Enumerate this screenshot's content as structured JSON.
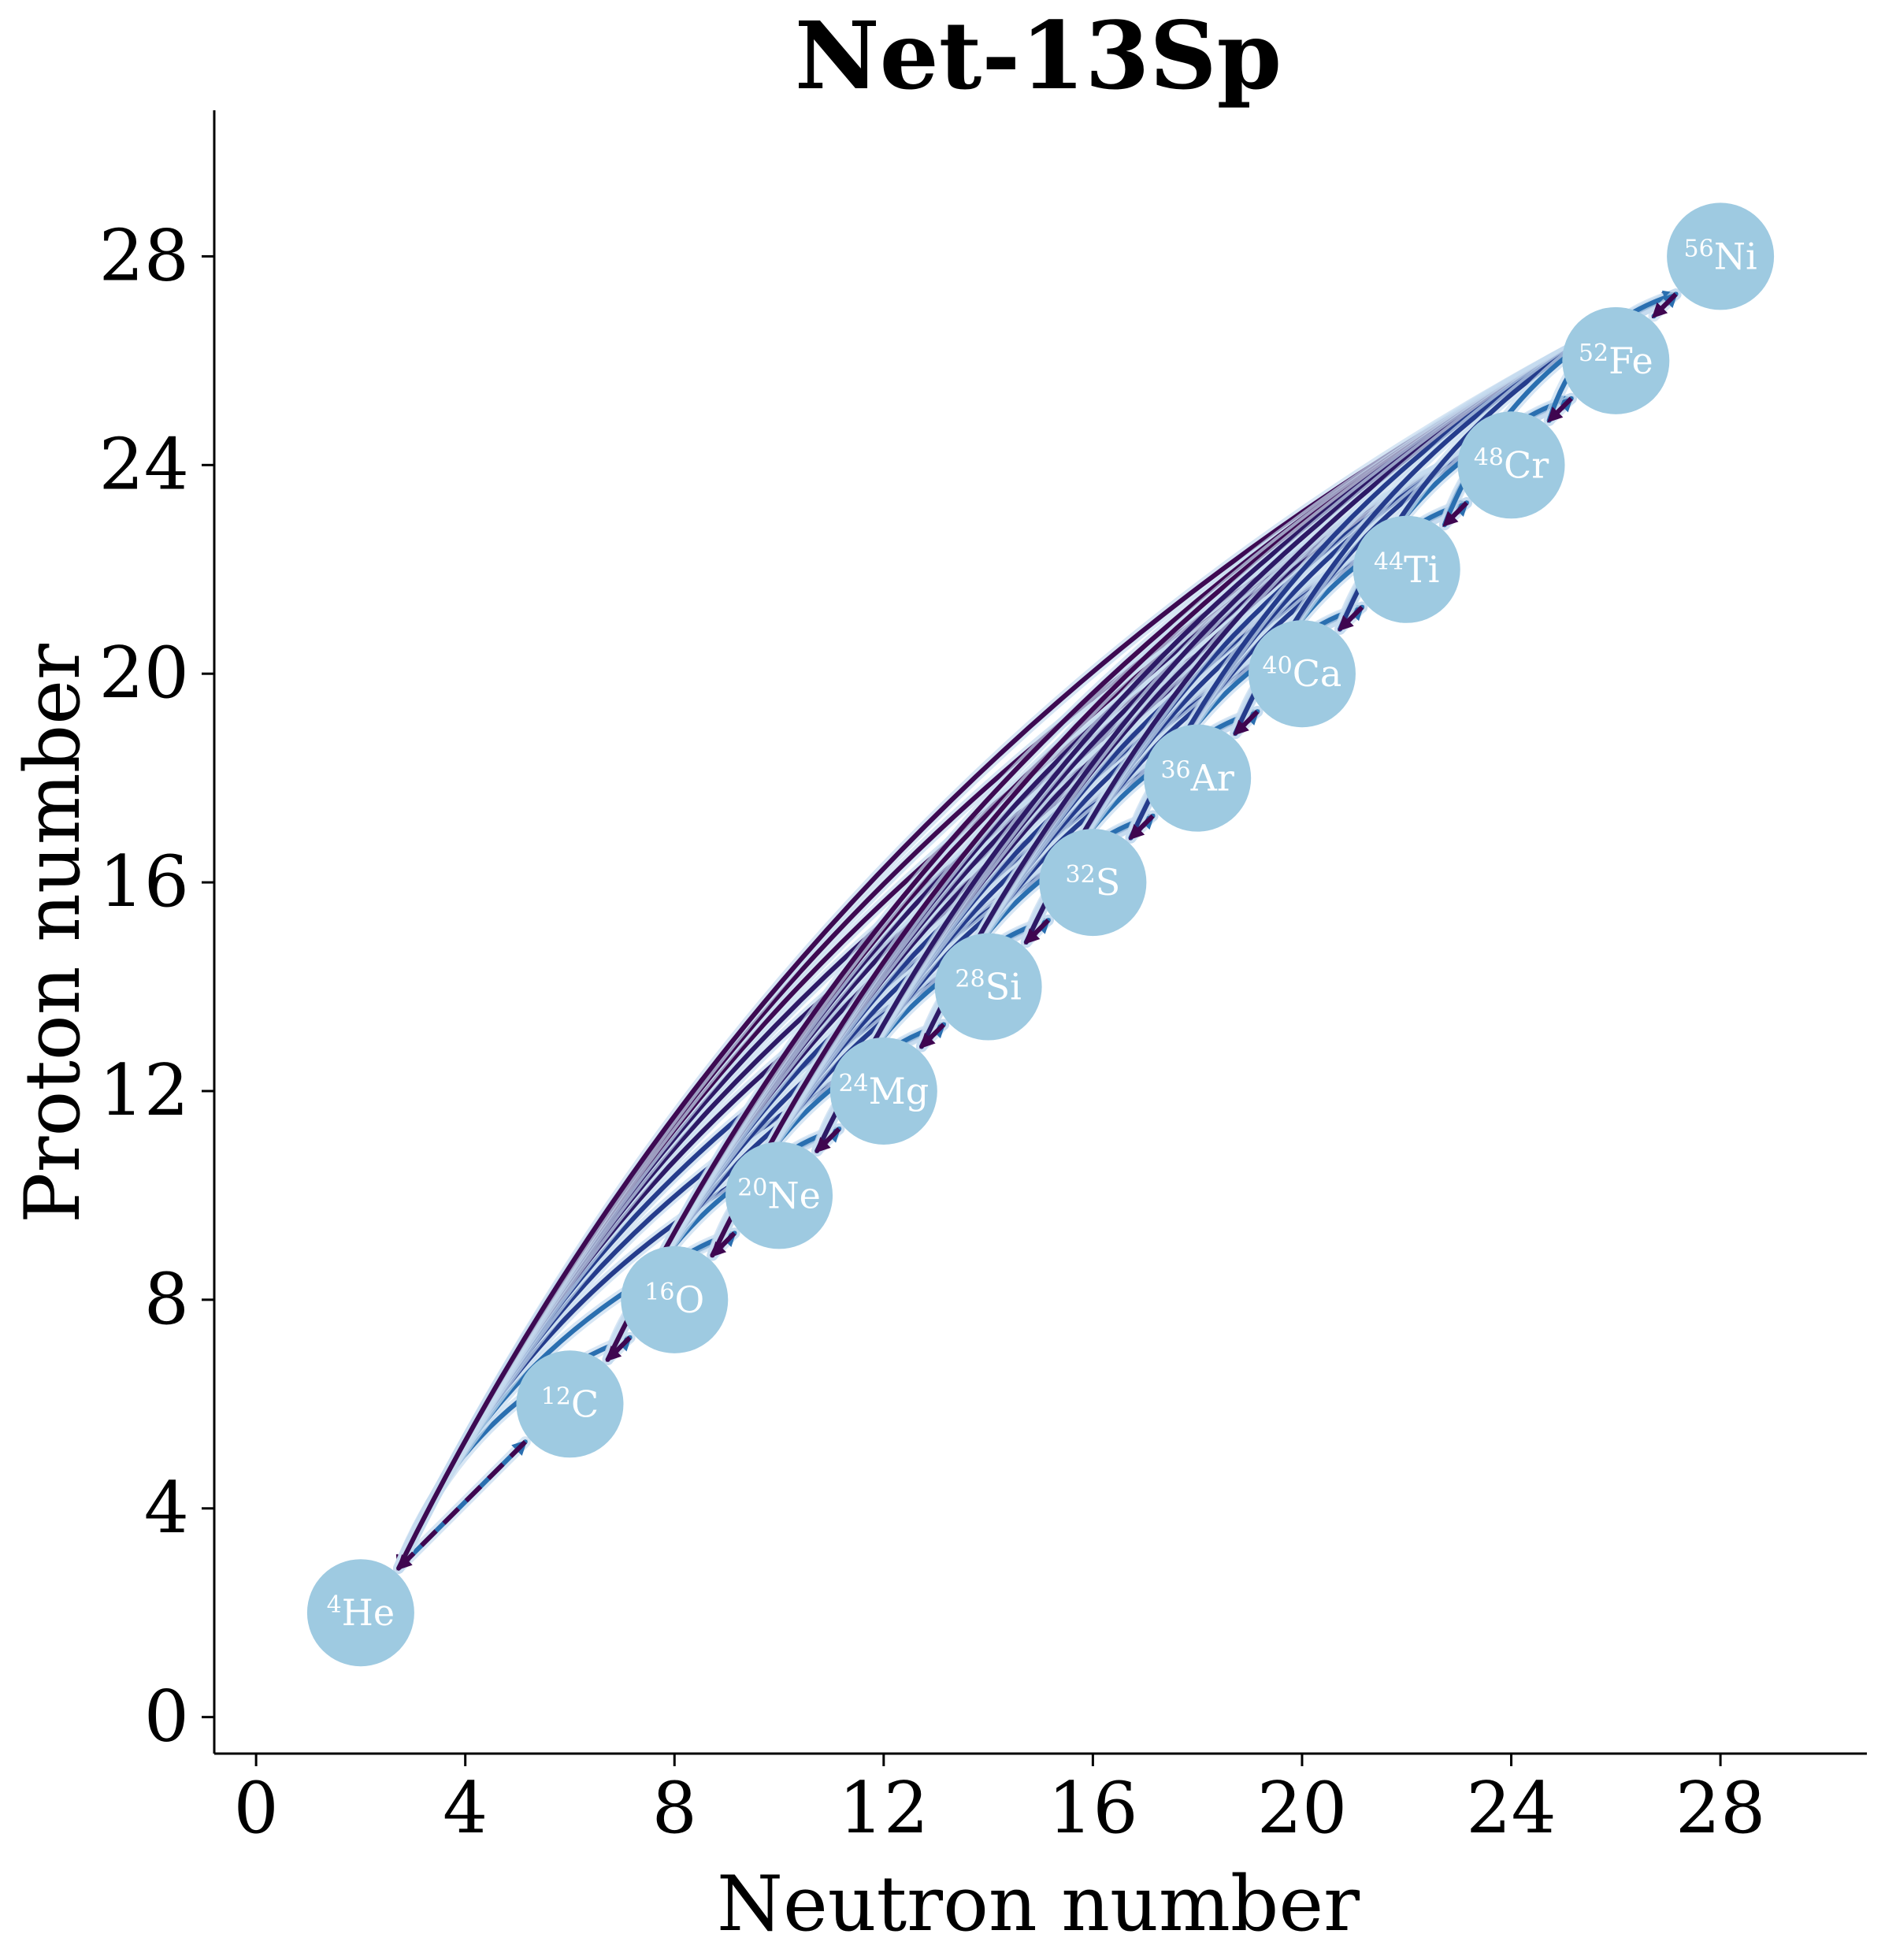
{
  "chart_data": {
    "type": "network",
    "title": "Net-13Sp",
    "xlabel": "Neutron number",
    "ylabel": "Proton number",
    "xlim": [
      -0.8,
      30.8
    ],
    "ylim": [
      -0.7,
      30.8
    ],
    "x_ticks": [
      "0",
      "4",
      "8",
      "12",
      "16",
      "20",
      "24",
      "28"
    ],
    "y_ticks": [
      "0",
      "4",
      "8",
      "12",
      "16",
      "20",
      "24",
      "28"
    ],
    "x_tick_values": [
      0,
      4,
      8,
      12,
      16,
      20,
      24,
      28
    ],
    "y_tick_values": [
      0,
      4,
      8,
      12,
      16,
      20,
      24,
      28
    ],
    "grid": false,
    "node_color": "#9ecae1",
    "forward_colors": [
      "#2a6fb0",
      "#253c8c",
      "#2d1a66",
      "#3d0a52"
    ],
    "reverse_color": "#3f0650",
    "halo_color": "#c6dbef",
    "nodes": [
      {
        "id": "He4",
        "mass": "4",
        "symbol": "He",
        "n": 2,
        "z": 2
      },
      {
        "id": "C12",
        "mass": "12",
        "symbol": "C",
        "n": 6,
        "z": 6
      },
      {
        "id": "O16",
        "mass": "16",
        "symbol": "O",
        "n": 8,
        "z": 8
      },
      {
        "id": "Ne20",
        "mass": "20",
        "symbol": "Ne",
        "n": 10,
        "z": 10
      },
      {
        "id": "Mg24",
        "mass": "24",
        "symbol": "Mg",
        "n": 12,
        "z": 12
      },
      {
        "id": "Si28",
        "mass": "28",
        "symbol": "Si",
        "n": 14,
        "z": 14
      },
      {
        "id": "S32",
        "mass": "32",
        "symbol": "S",
        "n": 16,
        "z": 16
      },
      {
        "id": "Ar36",
        "mass": "36",
        "symbol": "Ar",
        "n": 18,
        "z": 18
      },
      {
        "id": "Ca40",
        "mass": "40",
        "symbol": "Ca",
        "n": 20,
        "z": 20
      },
      {
        "id": "Ti44",
        "mass": "44",
        "symbol": "Ti",
        "n": 22,
        "z": 22
      },
      {
        "id": "Cr48",
        "mass": "48",
        "symbol": "Cr",
        "n": 24,
        "z": 24
      },
      {
        "id": "Fe52",
        "mass": "52",
        "symbol": "Fe",
        "n": 26,
        "z": 26
      },
      {
        "id": "Ni56",
        "mass": "56",
        "symbol": "Ni",
        "n": 28,
        "z": 28
      }
    ]
  }
}
